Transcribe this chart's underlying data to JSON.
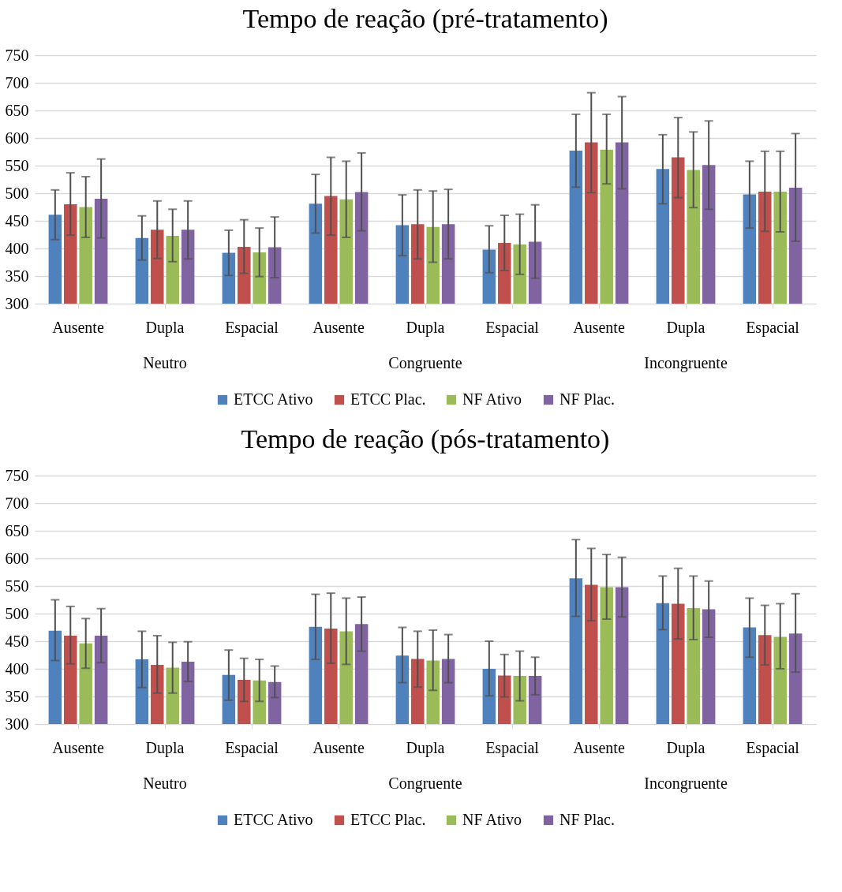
{
  "chart_data": [
    {
      "type": "bar",
      "title": "Tempo de reação (pré-tratamento)",
      "categories": [
        "Ausente",
        "Dupla",
        "Espacial",
        "Ausente",
        "Dupla",
        "Espacial",
        "Ausente",
        "Dupla",
        "Espacial"
      ],
      "annotations": [
        "Neutro",
        "Congruente",
        "Incongruente"
      ],
      "series": [
        {
          "name": "ETCC Ativo",
          "color": "#4f81bd",
          "values": [
            461,
            419,
            392,
            481,
            442,
            398,
            577,
            544,
            498
          ],
          "errors": [
            [
              416,
              506
            ],
            [
              379,
              459
            ],
            [
              351,
              433
            ],
            [
              428,
              534
            ],
            [
              387,
              497
            ],
            [
              356,
              441
            ],
            [
              511,
              643
            ],
            [
              481,
              606
            ],
            [
              437,
              558
            ]
          ]
        },
        {
          "name": "ETCC Plac.",
          "color": "#c0504d",
          "values": [
            480,
            434,
            403,
            495,
            444,
            410,
            592,
            565,
            503
          ],
          "errors": [
            [
              424,
              537
            ],
            [
              382,
              486
            ],
            [
              355,
              452
            ],
            [
              424,
              565
            ],
            [
              381,
              506
            ],
            [
              360,
              460
            ],
            [
              501,
              682
            ],
            [
              492,
              637
            ],
            [
              431,
              576
            ]
          ]
        },
        {
          "name": "NF Ativo",
          "color": "#9bbb59",
          "values": [
            475,
            423,
            393,
            489,
            439,
            407,
            579,
            542,
            503
          ],
          "errors": [
            [
              420,
              530
            ],
            [
              376,
              471
            ],
            [
              349,
              437
            ],
            [
              420,
              558
            ],
            [
              375,
              504
            ],
            [
              353,
              462
            ],
            [
              517,
              643
            ],
            [
              474,
              611
            ],
            [
              430,
              576
            ]
          ]
        },
        {
          "name": "NF Plac.",
          "color": "#8064a2",
          "values": [
            490,
            434,
            402,
            502,
            444,
            412,
            592,
            551,
            510
          ],
          "errors": [
            [
              419,
              562
            ],
            [
              381,
              486
            ],
            [
              347,
              457
            ],
            [
              432,
              573
            ],
            [
              381,
              507
            ],
            [
              346,
              479
            ],
            [
              508,
              675
            ],
            [
              471,
              631
            ],
            [
              413,
              608
            ]
          ]
        }
      ],
      "ylim": [
        300,
        750
      ],
      "yticks": [
        300,
        350,
        400,
        450,
        500,
        550,
        600,
        650,
        700,
        750
      ],
      "grid": "y",
      "legend": "bottom"
    },
    {
      "type": "bar",
      "title": "Tempo de reação (pós-tratamento)",
      "categories": [
        "Ausente",
        "Dupla",
        "Espacial",
        "Ausente",
        "Dupla",
        "Espacial",
        "Ausente",
        "Dupla",
        "Espacial"
      ],
      "annotations": [
        "Neutro",
        "Congruente",
        "Incongruente"
      ],
      "series": [
        {
          "name": "ETCC Ativo",
          "color": "#4f81bd",
          "values": [
            469,
            417,
            389,
            476,
            424,
            400,
            564,
            519,
            475
          ],
          "errors": [
            [
              415,
              525
            ],
            [
              366,
              468
            ],
            [
              343,
              434
            ],
            [
              417,
              535
            ],
            [
              375,
              475
            ],
            [
              351,
              450
            ],
            [
              495,
              634
            ],
            [
              471,
              568
            ],
            [
              421,
              528
            ]
          ]
        },
        {
          "name": "ETCC Plac.",
          "color": "#c0504d",
          "values": [
            460,
            407,
            380,
            473,
            418,
            388,
            552,
            518,
            461
          ],
          "errors": [
            [
              409,
              513
            ],
            [
              356,
              460
            ],
            [
              341,
              419
            ],
            [
              410,
              537
            ],
            [
              367,
              468
            ],
            [
              349,
              426
            ],
            [
              487,
              618
            ],
            [
              454,
              582
            ],
            [
              407,
              515
            ]
          ]
        },
        {
          "name": "NF Ativo",
          "color": "#9bbb59",
          "values": [
            446,
            402,
            379,
            468,
            415,
            387,
            548,
            510,
            458
          ],
          "errors": [
            [
              401,
              491
            ],
            [
              356,
              448
            ],
            [
              341,
              417
            ],
            [
              408,
              528
            ],
            [
              361,
              470
            ],
            [
              342,
              432
            ],
            [
              490,
              607
            ],
            [
              453,
              568
            ],
            [
              400,
              518
            ]
          ]
        },
        {
          "name": "NF Plac.",
          "color": "#8064a2",
          "values": [
            460,
            413,
            376,
            481,
            418,
            387,
            548,
            508,
            464
          ],
          "errors": [
            [
              411,
              509
            ],
            [
              377,
              449
            ],
            [
              348,
              405
            ],
            [
              432,
              530
            ],
            [
              375,
              462
            ],
            [
              353,
              421
            ],
            [
              494,
              602
            ],
            [
              457,
              559
            ],
            [
              394,
              536
            ]
          ]
        }
      ],
      "ylim": [
        300,
        750
      ],
      "yticks": [
        300,
        350,
        400,
        450,
        500,
        550,
        600,
        650,
        700,
        750
      ],
      "grid": "y",
      "legend": "bottom"
    }
  ]
}
